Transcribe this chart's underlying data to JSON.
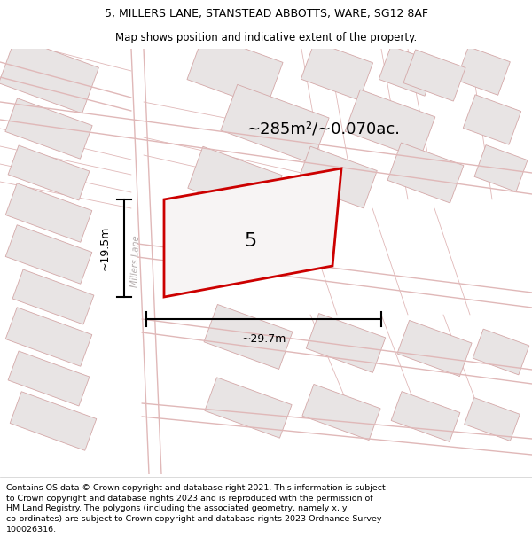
{
  "title_line1": "5, MILLERS LANE, STANSTEAD ABBOTTS, WARE, SG12 8AF",
  "title_line2": "Map shows position and indicative extent of the property.",
  "area_text": "~285m²/~0.070ac.",
  "plot_number": "5",
  "dim_width": "~29.7m",
  "dim_height": "~19.5m",
  "street_label": "Millers Lane",
  "footer_text": "Contains OS data © Crown copyright and database right 2021. This information is subject to Crown copyright and database rights 2023 and is reproduced with the permission of HM Land Registry. The polygons (including the associated geometry, namely x, y co-ordinates) are subject to Crown copyright and database rights 2023 Ordnance Survey 100026316.",
  "map_bg": "#f7f3f3",
  "building_fill": "#e8e4e4",
  "building_edge": "#d4a8a8",
  "road_line_color": "#e0b8b8",
  "plot_fill": "#f7f4f4",
  "plot_edge": "#cc0000",
  "dim_color": "#000000",
  "street_color": "#b0a8a8",
  "title_fontsize": 9.0,
  "subtitle_fontsize": 8.5,
  "footer_fontsize": 6.8,
  "area_fontsize": 13,
  "plot_label_fontsize": 16,
  "dim_fontsize": 9
}
